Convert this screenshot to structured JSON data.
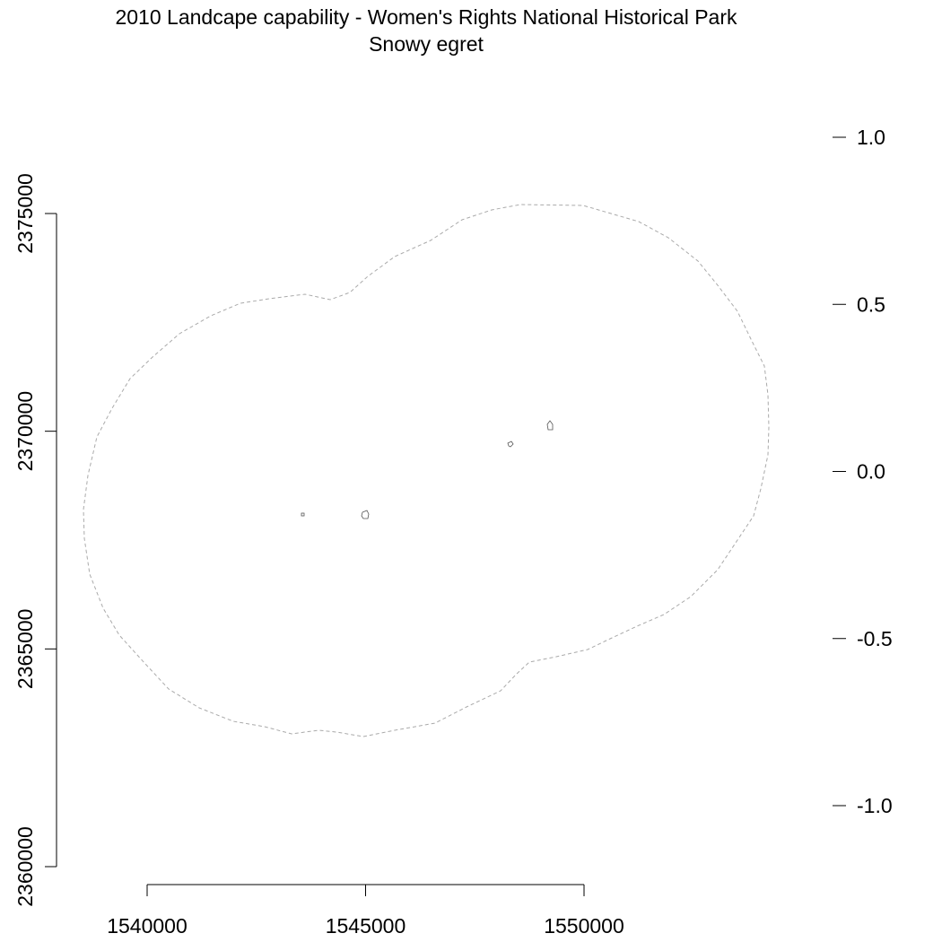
{
  "title": {
    "line1": "2010 Landcape capability - Women's Rights National Historical Park",
    "line2": "Snowy egret"
  },
  "map": {
    "x_axis": {
      "ticks": [
        1540000,
        1545000,
        1550000
      ],
      "labels": [
        "1540000",
        "1545000",
        "1550000"
      ]
    },
    "y_axis": {
      "ticks": [
        2360000,
        2365000,
        2370000,
        2375000
      ],
      "labels": [
        "2360000",
        "2365000",
        "2370000",
        "2375000"
      ]
    },
    "legend_scale": {
      "ticks": [
        1.0,
        0.5,
        0.0,
        -0.5,
        -1.0
      ],
      "labels": [
        "1.0",
        "0.5",
        "0.0",
        "-0.5",
        "-1.0"
      ]
    },
    "boundary_style": "dashed",
    "colors": {
      "boundary": "#aaaaaa",
      "axis": "#000000",
      "park_units": "#555555"
    }
  }
}
